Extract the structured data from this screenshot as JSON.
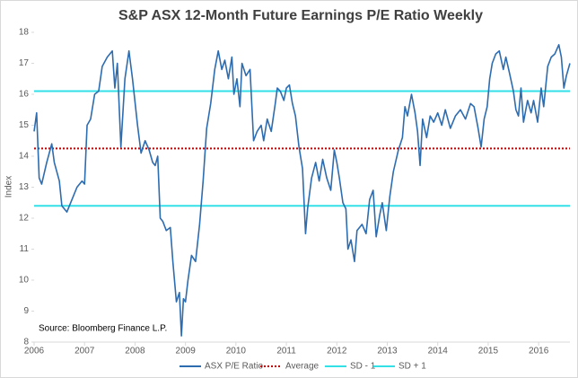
{
  "chart_data": {
    "type": "line",
    "title": "S&P ASX  12-Month Future Earnings P/E Ratio Weekly",
    "y_label": "Index",
    "annotation": "Source: Bloomberg Finance L.P.",
    "xlim": [
      2006,
      2016.62
    ],
    "xticks": [
      2006,
      2007,
      2008,
      2009,
      2010,
      2011,
      2012,
      2013,
      2014,
      2015,
      2016
    ],
    "ylim": [
      8,
      18
    ],
    "yticks": [
      8,
      9,
      10,
      11,
      12,
      13,
      14,
      15,
      16,
      17,
      18
    ],
    "grid": false,
    "legend": "bottom",
    "x": [
      2006.0,
      2006.05,
      2006.1,
      2006.15,
      2006.25,
      2006.35,
      2006.4,
      2006.5,
      2006.55,
      2006.65,
      2006.75,
      2006.85,
      2006.95,
      2007.0,
      2007.05,
      2007.12,
      2007.2,
      2007.28,
      2007.35,
      2007.45,
      2007.55,
      2007.6,
      2007.65,
      2007.72,
      2007.8,
      2007.88,
      2007.95,
      2008.05,
      2008.12,
      2008.2,
      2008.28,
      2008.35,
      2008.4,
      2008.45,
      2008.5,
      2008.55,
      2008.62,
      2008.7,
      2008.75,
      2008.82,
      2008.88,
      2008.92,
      2008.96,
      2009.0,
      2009.05,
      2009.12,
      2009.2,
      2009.28,
      2009.35,
      2009.42,
      2009.5,
      2009.58,
      2009.65,
      2009.72,
      2009.78,
      2009.85,
      2009.92,
      2009.96,
      2010.02,
      2010.08,
      2010.12,
      2010.2,
      2010.28,
      2010.35,
      2010.42,
      2010.5,
      2010.55,
      2010.62,
      2010.7,
      2010.78,
      2010.82,
      2010.88,
      2010.95,
      2011.0,
      2011.06,
      2011.12,
      2011.18,
      2011.25,
      2011.32,
      2011.38,
      2011.42,
      2011.5,
      2011.58,
      2011.65,
      2011.72,
      2011.8,
      2011.88,
      2011.95,
      2012.0,
      2012.05,
      2012.12,
      2012.18,
      2012.22,
      2012.28,
      2012.35,
      2012.4,
      2012.5,
      2012.58,
      2012.65,
      2012.72,
      2012.78,
      2012.85,
      2012.9,
      2012.98,
      2013.05,
      2013.12,
      2013.22,
      2013.3,
      2013.35,
      2013.4,
      2013.48,
      2013.55,
      2013.6,
      2013.65,
      2013.7,
      2013.78,
      2013.85,
      2013.92,
      2014.0,
      2014.08,
      2014.15,
      2014.25,
      2014.35,
      2014.45,
      2014.55,
      2014.65,
      2014.72,
      2014.8,
      2014.86,
      2014.92,
      2014.98,
      2015.03,
      2015.08,
      2015.15,
      2015.22,
      2015.3,
      2015.35,
      2015.42,
      2015.5,
      2015.55,
      2015.6,
      2015.65,
      2015.7,
      2015.78,
      2015.85,
      2015.9,
      2015.98,
      2016.05,
      2016.1,
      2016.18,
      2016.25,
      2016.32,
      2016.4,
      2016.45,
      2016.5,
      2016.55,
      2016.62
    ],
    "series": [
      {
        "name": "ASX P/E Ratio",
        "color": "#2e6cb0",
        "values": [
          14.8,
          15.4,
          13.3,
          13.1,
          13.8,
          14.4,
          13.8,
          13.2,
          12.4,
          12.2,
          12.6,
          13.0,
          13.2,
          13.1,
          15.0,
          15.2,
          16.0,
          16.1,
          16.9,
          17.2,
          17.4,
          16.2,
          17.0,
          14.3,
          16.5,
          17.4,
          16.5,
          15.0,
          14.1,
          14.5,
          14.2,
          13.8,
          13.7,
          14.0,
          12.0,
          11.9,
          11.6,
          11.7,
          10.6,
          9.3,
          9.6,
          8.2,
          9.4,
          9.3,
          10.0,
          10.8,
          10.6,
          11.8,
          13.2,
          14.9,
          15.7,
          16.8,
          17.4,
          16.8,
          17.1,
          16.5,
          17.2,
          16.0,
          16.5,
          15.6,
          17.0,
          16.6,
          16.8,
          14.5,
          14.8,
          15.0,
          14.5,
          15.2,
          14.8,
          15.7,
          16.2,
          16.1,
          15.8,
          16.2,
          16.3,
          15.7,
          15.3,
          14.3,
          13.6,
          11.5,
          12.3,
          13.3,
          13.8,
          13.2,
          13.9,
          13.3,
          12.9,
          14.2,
          13.8,
          13.3,
          12.5,
          12.3,
          11.0,
          11.3,
          10.6,
          11.6,
          11.8,
          11.5,
          12.6,
          12.9,
          11.4,
          12.1,
          12.5,
          11.6,
          12.7,
          13.5,
          14.2,
          14.6,
          15.6,
          15.3,
          16.0,
          15.4,
          14.8,
          13.7,
          15.2,
          14.6,
          15.3,
          15.1,
          15.4,
          15.0,
          15.5,
          14.9,
          15.3,
          15.5,
          15.2,
          15.7,
          15.6,
          14.9,
          14.3,
          15.2,
          15.6,
          16.5,
          17.0,
          17.3,
          17.4,
          16.8,
          17.2,
          16.7,
          16.1,
          15.5,
          15.3,
          16.2,
          15.1,
          15.8,
          15.4,
          15.8,
          15.1,
          16.2,
          15.6,
          16.9,
          17.2,
          17.3,
          17.6,
          17.2,
          16.2,
          16.6,
          17.0
        ]
      }
    ],
    "reference_lines": [
      {
        "name": "Average",
        "color": "#c00000",
        "style": "dotted",
        "value": 14.25
      },
      {
        "name": "SD - 1",
        "color": "#33e0e8",
        "style": "solid",
        "value": 12.4
      },
      {
        "name": "SD + 1",
        "color": "#33e0e8",
        "style": "solid",
        "value": 16.1
      }
    ]
  }
}
